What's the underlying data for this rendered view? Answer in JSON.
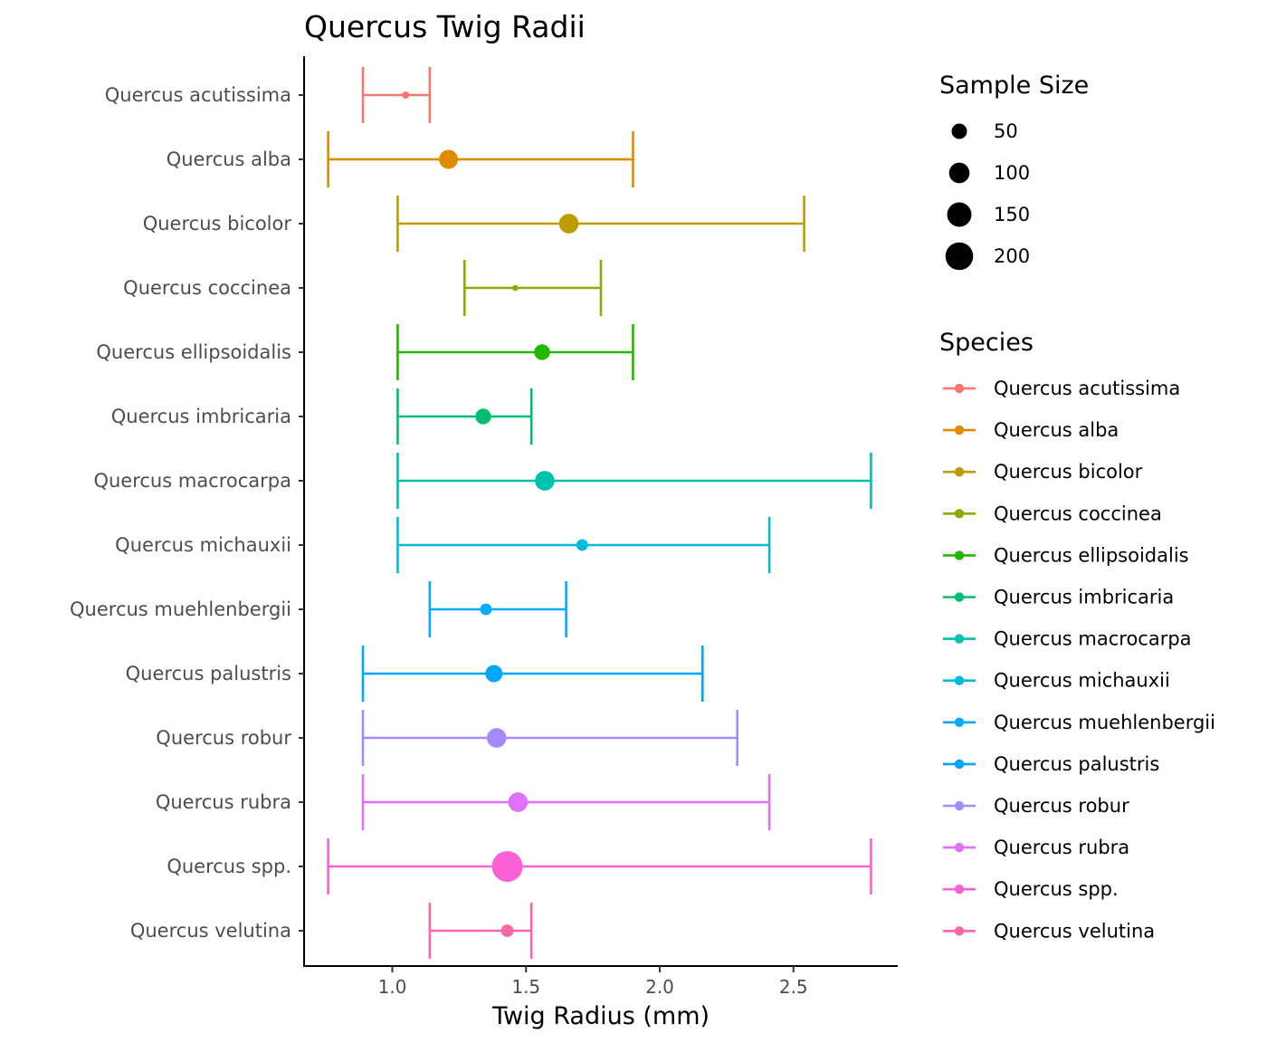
{
  "chart_data": {
    "type": "errorbar-dot",
    "title": "Quercus Twig Radii",
    "xlabel": "Twig Radius (mm)",
    "ylabel": "",
    "xlim": [
      0.67,
      2.89
    ],
    "xticks": [
      "1.0",
      "1.5",
      "2.0",
      "2.5"
    ],
    "xtick_values": [
      1.0,
      1.5,
      2.0,
      2.5
    ],
    "grid": false,
    "legend_placement": "right",
    "size_legend": {
      "title": "Sample Size",
      "values": [
        50,
        100,
        150,
        200
      ]
    },
    "color_legend": {
      "title": "Species"
    },
    "series": [
      {
        "name": "Quercus acutissima",
        "color": "#F8766D",
        "mean": 1.05,
        "low": 0.89,
        "high": 1.14,
        "n": 8
      },
      {
        "name": "Quercus alba",
        "color": "#E18A00",
        "mean": 1.21,
        "low": 0.76,
        "high": 1.9,
        "n": 75
      },
      {
        "name": "Quercus bicolor",
        "color": "#BE9C00",
        "mean": 1.66,
        "low": 1.02,
        "high": 2.54,
        "n": 80
      },
      {
        "name": "Quercus coccinea",
        "color": "#8CAB00",
        "mean": 1.46,
        "low": 1.27,
        "high": 1.78,
        "n": 5
      },
      {
        "name": "Quercus ellipsoidalis",
        "color": "#24B700",
        "mean": 1.56,
        "low": 1.02,
        "high": 1.9,
        "n": 50
      },
      {
        "name": "Quercus imbricaria",
        "color": "#00BE70",
        "mean": 1.34,
        "low": 1.02,
        "high": 1.52,
        "n": 50
      },
      {
        "name": "Quercus macrocarpa",
        "color": "#00C1AB",
        "mean": 1.57,
        "low": 1.02,
        "high": 2.79,
        "n": 80
      },
      {
        "name": "Quercus michauxii",
        "color": "#00BBDA",
        "mean": 1.71,
        "low": 1.02,
        "high": 2.41,
        "n": 25
      },
      {
        "name": "Quercus muehlenbergii",
        "color": "#00ACFC",
        "mean": 1.35,
        "low": 1.14,
        "high": 1.65,
        "n": 25
      },
      {
        "name": "Quercus palustris",
        "color": "#00A5FF",
        "mean": 1.38,
        "low": 0.89,
        "high": 2.16,
        "n": 60
      },
      {
        "name": "Quercus robur",
        "color": "#A58AFF",
        "mean": 1.39,
        "low": 0.89,
        "high": 2.29,
        "n": 80
      },
      {
        "name": "Quercus rubra",
        "color": "#DF70F8",
        "mean": 1.47,
        "low": 0.89,
        "high": 2.41,
        "n": 80
      },
      {
        "name": "Quercus spp.",
        "color": "#FB61D7",
        "mean": 1.43,
        "low": 0.76,
        "high": 2.79,
        "n": 210
      },
      {
        "name": "Quercus velutina",
        "color": "#FF66A8",
        "mean": 1.43,
        "low": 1.14,
        "high": 1.52,
        "n": 30
      }
    ]
  }
}
